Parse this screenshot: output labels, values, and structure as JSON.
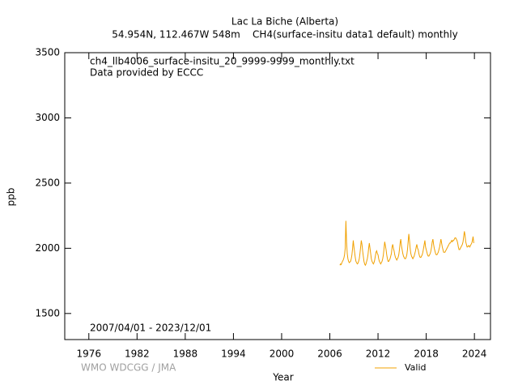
{
  "chart_data": {
    "type": "line",
    "title": "Lac La Biche (Alberta)",
    "subtitle": "54.954N, 112.467W 548m    CH4(surface-insitu data1 default) monthly",
    "annotations": [
      "ch4_llb4006_surface-insitu_20_9999-9999_monthly.txt",
      "Data provided by ECCC",
      "2007/04/01 - 2023/12/01",
      "WMO WDCGG / JMA"
    ],
    "xlabel": "Year",
    "ylabel": "ppb",
    "xlim": [
      1973,
      2026
    ],
    "ylim": [
      1300,
      3500
    ],
    "xticks": [
      1976,
      1982,
      1988,
      1994,
      2000,
      2006,
      2012,
      2018,
      2024
    ],
    "yticks": [
      1500,
      2000,
      2500,
      3000,
      3500
    ],
    "x": [
      2007.25,
      2007.333,
      2007.417,
      2007.5,
      2007.583,
      2007.667,
      2007.75,
      2007.833,
      2007.917,
      2008,
      2008.083,
      2008.167,
      2008.25,
      2008.333,
      2008.417,
      2008.5,
      2008.583,
      2008.667,
      2008.75,
      2008.833,
      2008.917,
      2009,
      2009.083,
      2009.167,
      2009.25,
      2009.333,
      2009.417,
      2009.5,
      2009.583,
      2009.667,
      2009.75,
      2009.833,
      2009.917,
      2010,
      2010.083,
      2010.167,
      2010.25,
      2010.333,
      2010.417,
      2010.5,
      2010.583,
      2010.667,
      2010.75,
      2010.833,
      2010.917,
      2011,
      2011.083,
      2011.167,
      2011.25,
      2011.333,
      2011.417,
      2011.5,
      2011.583,
      2011.667,
      2011.75,
      2011.833,
      2011.917,
      2012,
      2012.083,
      2012.167,
      2012.25,
      2012.333,
      2012.417,
      2012.5,
      2012.583,
      2012.667,
      2012.75,
      2012.833,
      2012.917,
      2013,
      2013.083,
      2013.167,
      2013.25,
      2013.333,
      2013.417,
      2013.5,
      2013.583,
      2013.667,
      2013.75,
      2013.833,
      2013.917,
      2014,
      2014.083,
      2014.167,
      2014.25,
      2014.333,
      2014.417,
      2014.5,
      2014.583,
      2014.667,
      2014.75,
      2014.833,
      2014.917,
      2015,
      2015.083,
      2015.167,
      2015.25,
      2015.333,
      2015.417,
      2015.5,
      2015.583,
      2015.667,
      2015.75,
      2015.833,
      2015.917,
      2016,
      2016.083,
      2016.167,
      2016.25,
      2016.333,
      2016.417,
      2016.5,
      2016.583,
      2016.667,
      2016.75,
      2016.833,
      2016.917,
      2017,
      2017.083,
      2017.167,
      2017.25,
      2017.333,
      2017.417,
      2017.5,
      2017.583,
      2017.667,
      2017.75,
      2017.833,
      2017.917,
      2018,
      2018.083,
      2018.167,
      2018.25,
      2018.333,
      2018.417,
      2018.5,
      2018.583,
      2018.667,
      2018.75,
      2018.833,
      2018.917,
      2019,
      2019.083,
      2019.167,
      2019.25,
      2019.333,
      2019.417,
      2019.5,
      2019.583,
      2019.667,
      2019.75,
      2019.833,
      2019.917,
      2020,
      2020.083,
      2020.167,
      2020.25,
      2020.333,
      2020.417,
      2020.5,
      2020.583,
      2020.667,
      2020.75,
      2020.833,
      2020.917,
      2021,
      2021.083,
      2021.167,
      2021.25,
      2021.333,
      2021.417,
      2021.5,
      2021.583,
      2021.667,
      2021.75,
      2021.833,
      2021.917,
      2022,
      2022.083,
      2022.167,
      2022.25,
      2022.333,
      2022.417,
      2022.5,
      2022.583,
      2022.667,
      2022.75,
      2022.833,
      2022.917,
      2023,
      2023.083,
      2023.167,
      2023.25,
      2023.333,
      2023.417,
      2023.5,
      2023.583,
      2023.667,
      2023.75,
      2023.833,
      2023.917
    ],
    "series": [
      {
        "name": "Valid",
        "color": "#f0a000",
        "values": [
          1870,
          1880,
          1875,
          1890,
          1900,
          1910,
          1925,
          1950,
          2000,
          2210,
          2050,
          1960,
          1920,
          1900,
          1890,
          1895,
          1900,
          1920,
          1950,
          2000,
          2060,
          2010,
          1970,
          1930,
          1900,
          1890,
          1880,
          1885,
          1900,
          1920,
          1960,
          2010,
          2060,
          2030,
          1980,
          1940,
          1900,
          1880,
          1870,
          1880,
          1900,
          1920,
          1950,
          2000,
          2040,
          2000,
          1960,
          1920,
          1900,
          1890,
          1880,
          1890,
          1910,
          1940,
          1970,
          1980,
          1960,
          1950,
          1920,
          1900,
          1890,
          1880,
          1890,
          1900,
          1920,
          1950,
          2000,
          2050,
          2020,
          1990,
          1950,
          1920,
          1900,
          1900,
          1910,
          1920,
          1940,
          1960,
          2010,
          2030,
          2000,
          1980,
          1950,
          1930,
          1920,
          1910,
          1920,
          1930,
          1950,
          1990,
          2040,
          2070,
          2020,
          1990,
          1960,
          1940,
          1930,
          1920,
          1920,
          1930,
          1950,
          1990,
          2050,
          2110,
          2060,
          2000,
          1960,
          1940,
          1930,
          1920,
          1930,
          1940,
          1960,
          1980,
          2010,
          2030,
          2000,
          1990,
          1960,
          1940,
          1930,
          1930,
          1940,
          1950,
          1970,
          2000,
          2030,
          2060,
          2010,
          1990,
          1970,
          1950,
          1940,
          1940,
          1950,
          1960,
          1980,
          2010,
          2050,
          2070,
          2030,
          2000,
          1980,
          1960,
          1950,
          1950,
          1960,
          1970,
          1990,
          2010,
          2040,
          2070,
          2040,
          2010,
          1990,
          1970,
          1970,
          1970,
          1980,
          1990,
          2000,
          2010,
          2020,
          2030,
          2040,
          2040,
          2050,
          2060,
          2050,
          2060,
          2060,
          2070,
          2080,
          2080,
          2070,
          2060,
          2040,
          2010,
          1990,
          1990,
          2000,
          2010,
          2020,
          2030,
          2050,
          2090,
          2130,
          2100,
          2050,
          2030,
          2010,
          2010,
          2020,
          2020,
          2010,
          2020,
          2030,
          2040,
          2060,
          2090,
          2040
        ]
      }
    ]
  }
}
